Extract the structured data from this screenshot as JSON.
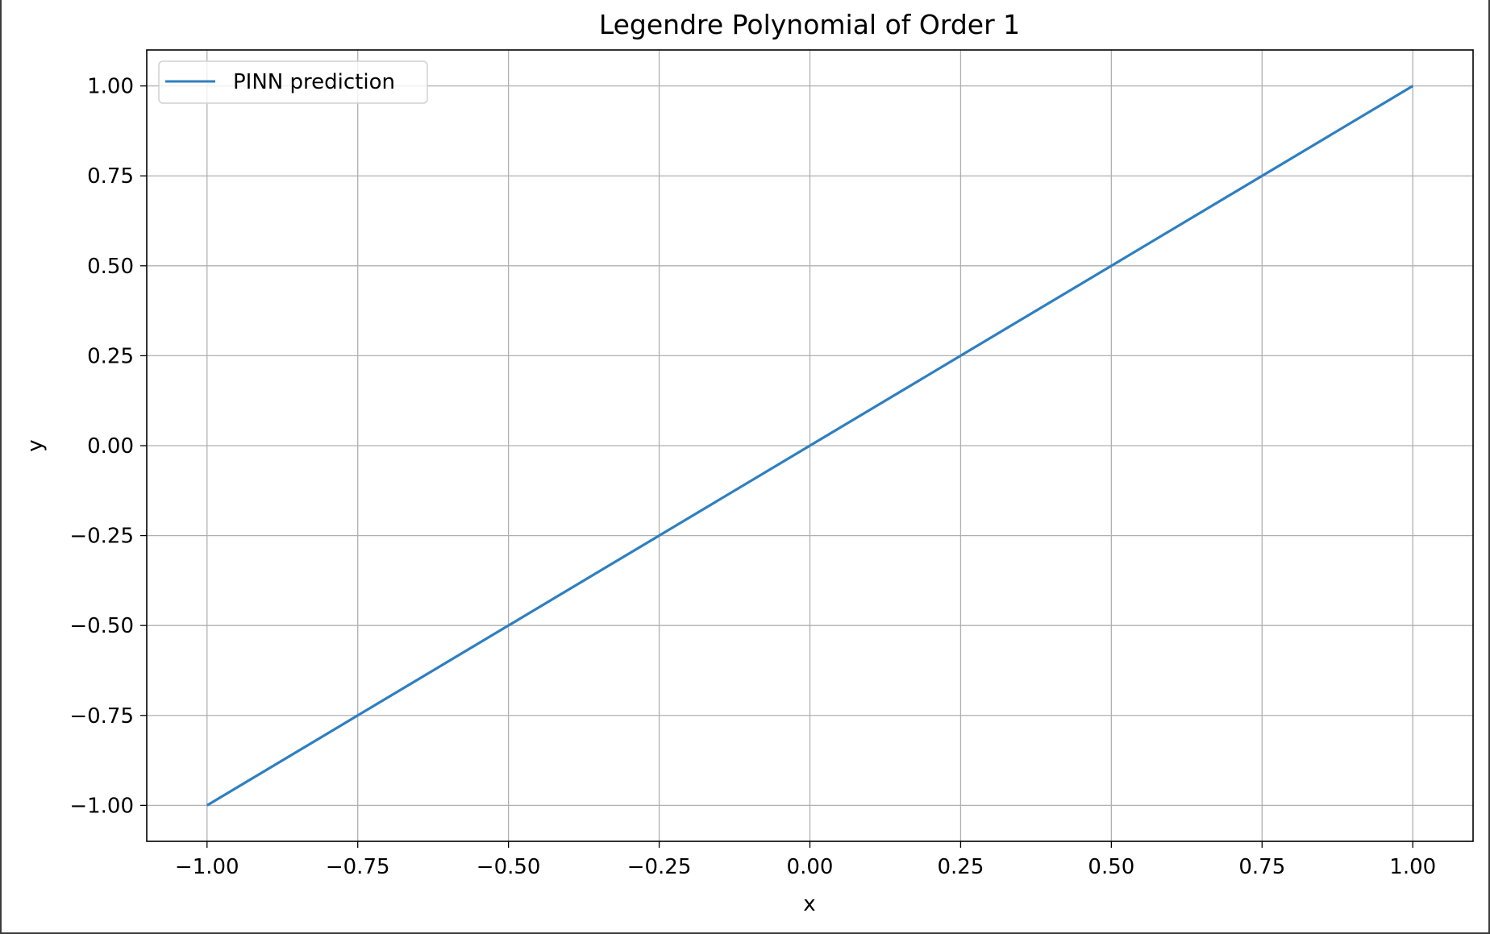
{
  "chart_data": {
    "type": "line",
    "title": "Legendre Polynomial of Order 1",
    "xlabel": "x",
    "ylabel": "y",
    "xlim": [
      -1.1,
      1.1
    ],
    "ylim": [
      -1.1,
      1.1
    ],
    "x_ticks": [
      -1.0,
      -0.75,
      -0.5,
      -0.25,
      0.0,
      0.25,
      0.5,
      0.75,
      1.0
    ],
    "y_ticks": [
      -1.0,
      -0.75,
      -0.5,
      -0.25,
      0.0,
      0.25,
      0.5,
      0.75,
      1.0
    ],
    "x_tick_labels": [
      "−1.00",
      "−0.75",
      "−0.50",
      "−0.25",
      "0.00",
      "0.25",
      "0.50",
      "0.75",
      "1.00"
    ],
    "y_tick_labels": [
      "−1.00",
      "−0.75",
      "−0.50",
      "−0.25",
      "0.00",
      "0.25",
      "0.50",
      "0.75",
      "1.00"
    ],
    "grid": true,
    "legend_position": "upper-left",
    "series": [
      {
        "name": "PINN prediction",
        "color": "#2f7fc0",
        "x": [
          -1.0,
          -0.75,
          -0.5,
          -0.25,
          0.0,
          0.25,
          0.5,
          0.75,
          1.0
        ],
        "y": [
          -1.0,
          -0.75,
          -0.5,
          -0.25,
          0.0,
          0.25,
          0.5,
          0.75,
          1.0
        ]
      }
    ]
  }
}
